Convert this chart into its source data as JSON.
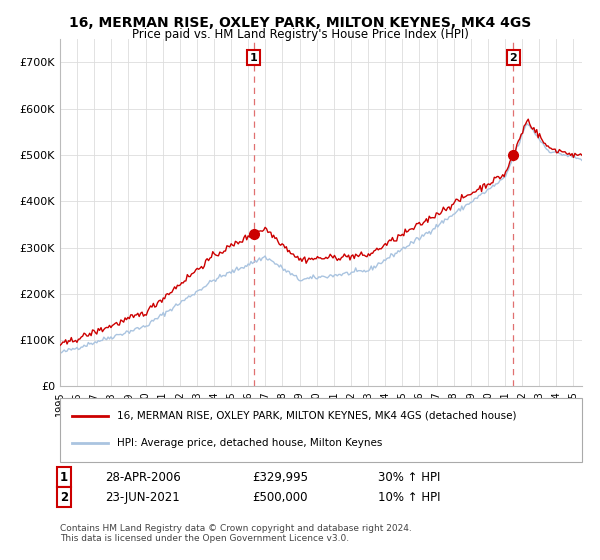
{
  "title": "16, MERMAN RISE, OXLEY PARK, MILTON KEYNES, MK4 4GS",
  "subtitle": "Price paid vs. HM Land Registry's House Price Index (HPI)",
  "legend_line1": "16, MERMAN RISE, OXLEY PARK, MILTON KEYNES, MK4 4GS (detached house)",
  "legend_line2": "HPI: Average price, detached house, Milton Keynes",
  "footer": "Contains HM Land Registry data © Crown copyright and database right 2024.\nThis data is licensed under the Open Government Licence v3.0.",
  "sale1_date": "28-APR-2006",
  "sale1_price": "£329,995",
  "sale1_hpi": "30% ↑ HPI",
  "sale2_date": "23-JUN-2021",
  "sale2_price": "£500,000",
  "sale2_hpi": "10% ↑ HPI",
  "sale1_x": 2006.32,
  "sale1_y": 329995,
  "sale2_x": 2021.48,
  "sale2_y": 500000,
  "vline1_x": 2006.32,
  "vline2_x": 2021.48,
  "xmin": 1995,
  "xmax": 2025.5,
  "ymin": 0,
  "ymax": 750000,
  "yticks": [
    0,
    100000,
    200000,
    300000,
    400000,
    500000,
    600000,
    700000
  ],
  "ytick_labels": [
    "£0",
    "£100K",
    "£200K",
    "£300K",
    "£400K",
    "£500K",
    "£600K",
    "£700K"
  ],
  "xticks": [
    1995,
    1996,
    1997,
    1998,
    1999,
    2000,
    2001,
    2002,
    2003,
    2004,
    2005,
    2006,
    2007,
    2008,
    2009,
    2010,
    2011,
    2012,
    2013,
    2014,
    2015,
    2016,
    2017,
    2018,
    2019,
    2020,
    2021,
    2022,
    2023,
    2024,
    2025
  ],
  "hpi_color": "#aac4e0",
  "price_color": "#cc0000",
  "vline_color": "#e07070",
  "dot_color": "#cc0000",
  "bg_color": "#ffffff",
  "grid_color": "#dddddd"
}
